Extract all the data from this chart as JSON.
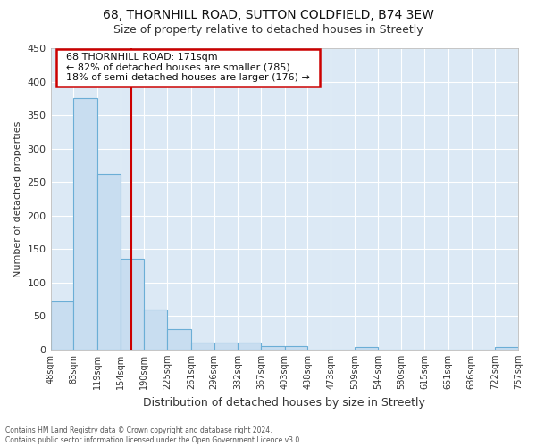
{
  "title1": "68, THORNHILL ROAD, SUTTON COLDFIELD, B74 3EW",
  "title2": "Size of property relative to detached houses in Streetly",
  "xlabel": "Distribution of detached houses by size in Streetly",
  "ylabel": "Number of detached properties",
  "footer1": "Contains HM Land Registry data © Crown copyright and database right 2024.",
  "footer2": "Contains public sector information licensed under the Open Government Licence v3.0.",
  "annotation_line1": "68 THORNHILL ROAD: 171sqm",
  "annotation_line2": "← 82% of detached houses are smaller (785)",
  "annotation_line3": "18% of semi-detached houses are larger (176) →",
  "property_size": 171,
  "bar_edges": [
    48,
    83,
    119,
    154,
    190,
    225,
    261,
    296,
    332,
    367,
    403,
    438,
    473,
    509,
    544,
    580,
    615,
    651,
    686,
    722,
    757
  ],
  "bar_heights": [
    72,
    375,
    262,
    135,
    60,
    30,
    10,
    10,
    10,
    5,
    5,
    0,
    0,
    4,
    0,
    0,
    0,
    0,
    0,
    4
  ],
  "bar_color": "#c8ddf0",
  "bar_edge_color": "#6baed6",
  "vline_color": "#cc0000",
  "vline_x": 171,
  "annotation_box_color": "#ffffff",
  "annotation_box_edge_color": "#cc0000",
  "plot_bg_color": "#dce9f5",
  "fig_bg_color": "#ffffff",
  "grid_color": "#ffffff",
  "ylim": [
    0,
    450
  ],
  "yticks": [
    0,
    50,
    100,
    150,
    200,
    250,
    300,
    350,
    400,
    450
  ]
}
